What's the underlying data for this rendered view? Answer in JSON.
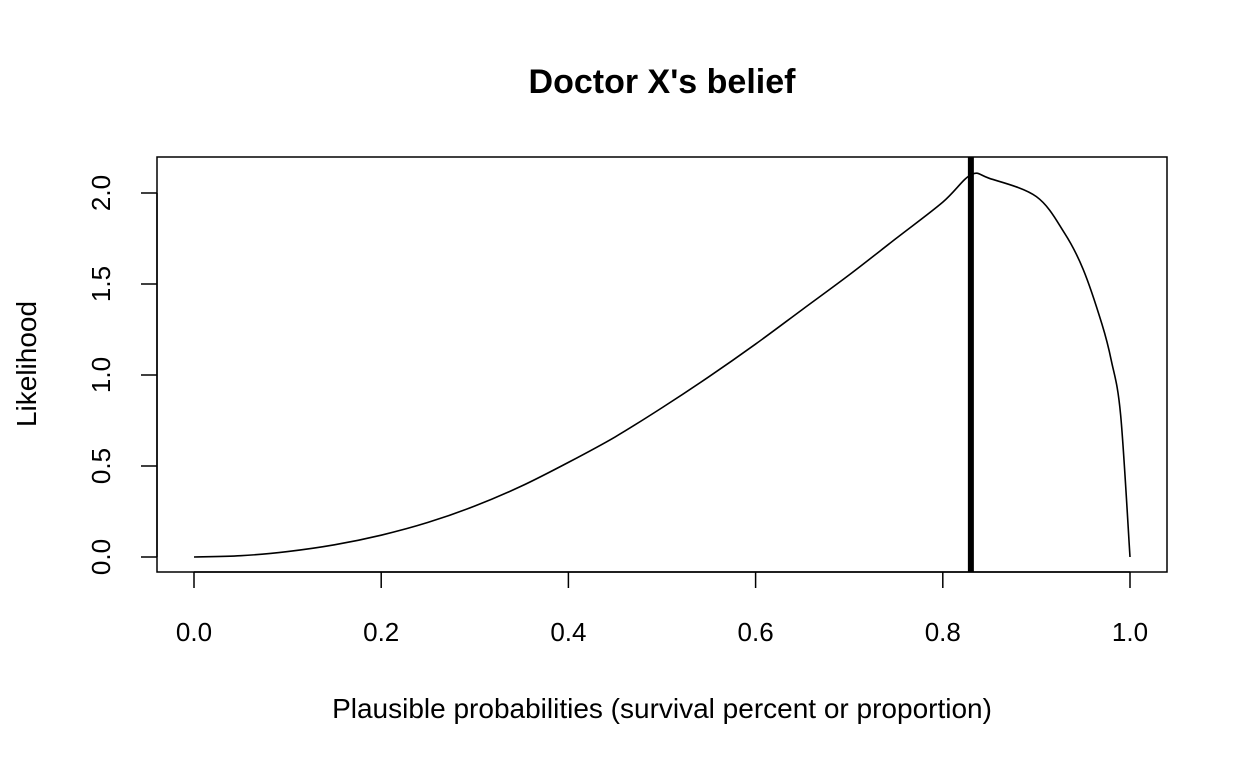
{
  "chart_data": {
    "type": "line",
    "title": "Doctor X's belief",
    "xlabel": "Plausible probabilities (survival percent or proportion)",
    "ylabel": "Likelihood",
    "xlim": [
      0,
      1
    ],
    "ylim": [
      0,
      2.1
    ],
    "xticks": [
      0.0,
      0.2,
      0.4,
      0.6,
      0.8,
      1.0
    ],
    "xtick_labels": [
      "0.0",
      "0.2",
      "0.4",
      "0.6",
      "0.8",
      "1.0"
    ],
    "yticks": [
      0.0,
      0.5,
      1.0,
      1.5,
      2.0
    ],
    "ytick_labels": [
      "0.0",
      "0.5",
      "1.0",
      "1.5",
      "2.0"
    ],
    "grid": false,
    "legend": "none",
    "series": [
      {
        "x": [
          0.0,
          0.05,
          0.1,
          0.15,
          0.2,
          0.25,
          0.3,
          0.35,
          0.4,
          0.45,
          0.5,
          0.55,
          0.6,
          0.65,
          0.7,
          0.75,
          0.8,
          0.83,
          0.85,
          0.9,
          0.93,
          0.95,
          0.97,
          0.98,
          0.99,
          1.0
        ],
        "y": [
          0.0,
          0.007,
          0.03,
          0.067,
          0.12,
          0.19,
          0.28,
          0.39,
          0.52,
          0.66,
          0.82,
          0.99,
          1.17,
          1.36,
          1.55,
          1.75,
          1.95,
          2.1,
          2.08,
          1.98,
          1.78,
          1.58,
          1.28,
          1.08,
          0.78,
          0.0
        ]
      }
    ],
    "annotations": [
      {
        "type": "vline",
        "x": 0.83,
        "color": "#000000"
      }
    ]
  }
}
